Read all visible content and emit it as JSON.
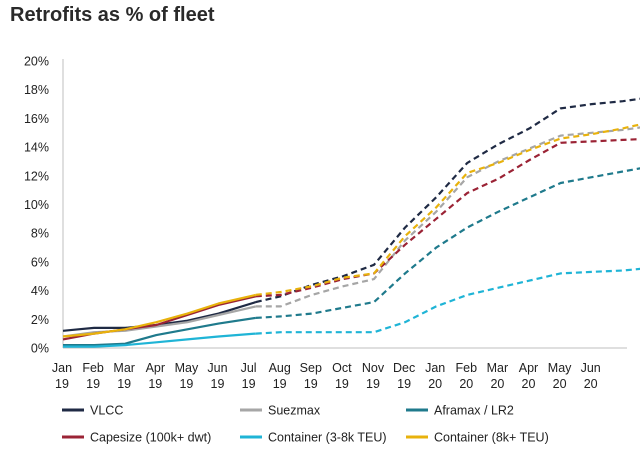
{
  "chart_data": {
    "type": "line",
    "title": "Retrofits as % of fleet",
    "xlabel": "",
    "ylabel": "",
    "ylim": [
      0,
      20
    ],
    "y_ticks": [
      "0%",
      "2%",
      "4%",
      "6%",
      "8%",
      "10%",
      "12%",
      "14%",
      "16%",
      "18%",
      "20%"
    ],
    "x_ticks": [
      {
        "month": "Jan",
        "year": "19"
      },
      {
        "month": "Feb",
        "year": "19"
      },
      {
        "month": "Mar",
        "year": "19"
      },
      {
        "month": "Apr",
        "year": "19"
      },
      {
        "month": "May",
        "year": "19"
      },
      {
        "month": "Jun",
        "year": "19"
      },
      {
        "month": "Jul",
        "year": "19"
      },
      {
        "month": "Aug",
        "year": "19"
      },
      {
        "month": "Sep",
        "year": "19"
      },
      {
        "month": "Oct",
        "year": "19"
      },
      {
        "month": "Nov",
        "year": "19"
      },
      {
        "month": "Dec",
        "year": "19"
      },
      {
        "month": "Jan",
        "year": "20"
      },
      {
        "month": "Feb",
        "year": "20"
      },
      {
        "month": "Mar",
        "year": "20"
      },
      {
        "month": "Apr",
        "year": "20"
      },
      {
        "month": "May",
        "year": "20"
      },
      {
        "month": "Jun",
        "year": "20"
      }
    ],
    "grid": false,
    "legend_position": "bottom",
    "x_note": "x values are month indices from Jan 19 = 0; values after index ~6.2 are projections drawn dashed",
    "series": [
      {
        "name": "VLCC",
        "color": "#1f2a44",
        "actual": [
          [
            0,
            1.2
          ],
          [
            0.5,
            1.3
          ],
          [
            1,
            1.4
          ],
          [
            2,
            1.4
          ],
          [
            3,
            1.6
          ],
          [
            4,
            1.9
          ],
          [
            5,
            2.4
          ],
          [
            6.2,
            3.2
          ]
        ],
        "projected": [
          [
            6.2,
            3.2
          ],
          [
            7,
            3.6
          ],
          [
            8,
            4.4
          ],
          [
            9,
            5.0
          ],
          [
            10,
            5.8
          ],
          [
            11,
            8.4
          ],
          [
            12,
            10.5
          ],
          [
            13,
            12.9
          ],
          [
            14,
            14.2
          ],
          [
            15,
            15.3
          ],
          [
            16,
            16.7
          ],
          [
            17,
            17.0
          ],
          [
            18,
            17.2
          ],
          [
            19,
            17.5
          ]
        ]
      },
      {
        "name": "Suezmax",
        "color": "#a6a6a6",
        "actual": [
          [
            0,
            0.8
          ],
          [
            1,
            1.1
          ],
          [
            2,
            1.2
          ],
          [
            3,
            1.5
          ],
          [
            4,
            1.8
          ],
          [
            5,
            2.3
          ],
          [
            6.2,
            2.9
          ]
        ],
        "projected": [
          [
            6.2,
            2.9
          ],
          [
            7,
            2.9
          ],
          [
            8,
            3.7
          ],
          [
            9,
            4.3
          ],
          [
            10,
            4.8
          ],
          [
            11,
            7.5
          ],
          [
            12,
            9.5
          ],
          [
            13,
            11.9
          ],
          [
            14,
            13.0
          ],
          [
            15,
            13.9
          ],
          [
            16,
            14.8
          ],
          [
            17,
            15.0
          ],
          [
            18,
            15.2
          ],
          [
            19,
            15.5
          ]
        ]
      },
      {
        "name": "Aframax / LR2",
        "color": "#1f7a8c",
        "actual": [
          [
            0,
            0.2
          ],
          [
            1,
            0.2
          ],
          [
            2,
            0.3
          ],
          [
            3,
            0.9
          ],
          [
            4,
            1.3
          ],
          [
            5,
            1.7
          ],
          [
            6.2,
            2.1
          ]
        ],
        "projected": [
          [
            6.2,
            2.1
          ],
          [
            7,
            2.2
          ],
          [
            8,
            2.4
          ],
          [
            9,
            2.8
          ],
          [
            10,
            3.2
          ],
          [
            11,
            5.2
          ],
          [
            12,
            7.0
          ],
          [
            13,
            8.4
          ],
          [
            14,
            9.5
          ],
          [
            15,
            10.5
          ],
          [
            16,
            11.5
          ],
          [
            17,
            11.9
          ],
          [
            18,
            12.3
          ],
          [
            19,
            12.7
          ]
        ]
      },
      {
        "name": "Capesize (100k+ dwt)",
        "color": "#9b2335",
        "actual": [
          [
            0,
            0.6
          ],
          [
            1,
            1.0
          ],
          [
            2,
            1.3
          ],
          [
            3,
            1.6
          ],
          [
            4,
            2.3
          ],
          [
            5,
            3.0
          ],
          [
            6.2,
            3.6
          ]
        ],
        "projected": [
          [
            6.2,
            3.6
          ],
          [
            7,
            3.7
          ],
          [
            8,
            4.2
          ],
          [
            9,
            4.8
          ],
          [
            10,
            5.2
          ],
          [
            11,
            7.2
          ],
          [
            12,
            9.0
          ],
          [
            13,
            10.8
          ],
          [
            14,
            11.8
          ],
          [
            15,
            13.1
          ],
          [
            16,
            14.3
          ],
          [
            17,
            14.4
          ],
          [
            18,
            14.5
          ],
          [
            19,
            14.6
          ]
        ]
      },
      {
        "name": "Container (3-8k TEU)",
        "color": "#1fb4d6",
        "actual": [
          [
            0,
            0.1
          ],
          [
            1,
            0.1
          ],
          [
            2,
            0.2
          ],
          [
            3,
            0.4
          ],
          [
            4,
            0.6
          ],
          [
            5,
            0.8
          ],
          [
            6.2,
            1.0
          ]
        ],
        "projected": [
          [
            6.2,
            1.0
          ],
          [
            7,
            1.1
          ],
          [
            8,
            1.1
          ],
          [
            9,
            1.1
          ],
          [
            10,
            1.1
          ],
          [
            11,
            1.8
          ],
          [
            12,
            2.9
          ],
          [
            13,
            3.7
          ],
          [
            14,
            4.2
          ],
          [
            15,
            4.7
          ],
          [
            16,
            5.2
          ],
          [
            17,
            5.3
          ],
          [
            18,
            5.4
          ],
          [
            19,
            5.6
          ]
        ]
      },
      {
        "name": "Container (8k+ TEU)",
        "color": "#e8b20c",
        "actual": [
          [
            0,
            0.8
          ],
          [
            1,
            1.0
          ],
          [
            2,
            1.3
          ],
          [
            3,
            1.8
          ],
          [
            4,
            2.4
          ],
          [
            5,
            3.1
          ],
          [
            6.2,
            3.7
          ]
        ],
        "projected": [
          [
            6.2,
            3.7
          ],
          [
            7,
            3.9
          ],
          [
            8,
            4.3
          ],
          [
            9,
            4.9
          ],
          [
            10,
            5.2
          ],
          [
            11,
            7.8
          ],
          [
            12,
            9.8
          ],
          [
            13,
            12.2
          ],
          [
            14,
            12.9
          ],
          [
            15,
            13.8
          ],
          [
            16,
            14.6
          ],
          [
            17,
            14.9
          ],
          [
            18,
            15.3
          ],
          [
            19,
            15.8
          ]
        ]
      }
    ]
  }
}
